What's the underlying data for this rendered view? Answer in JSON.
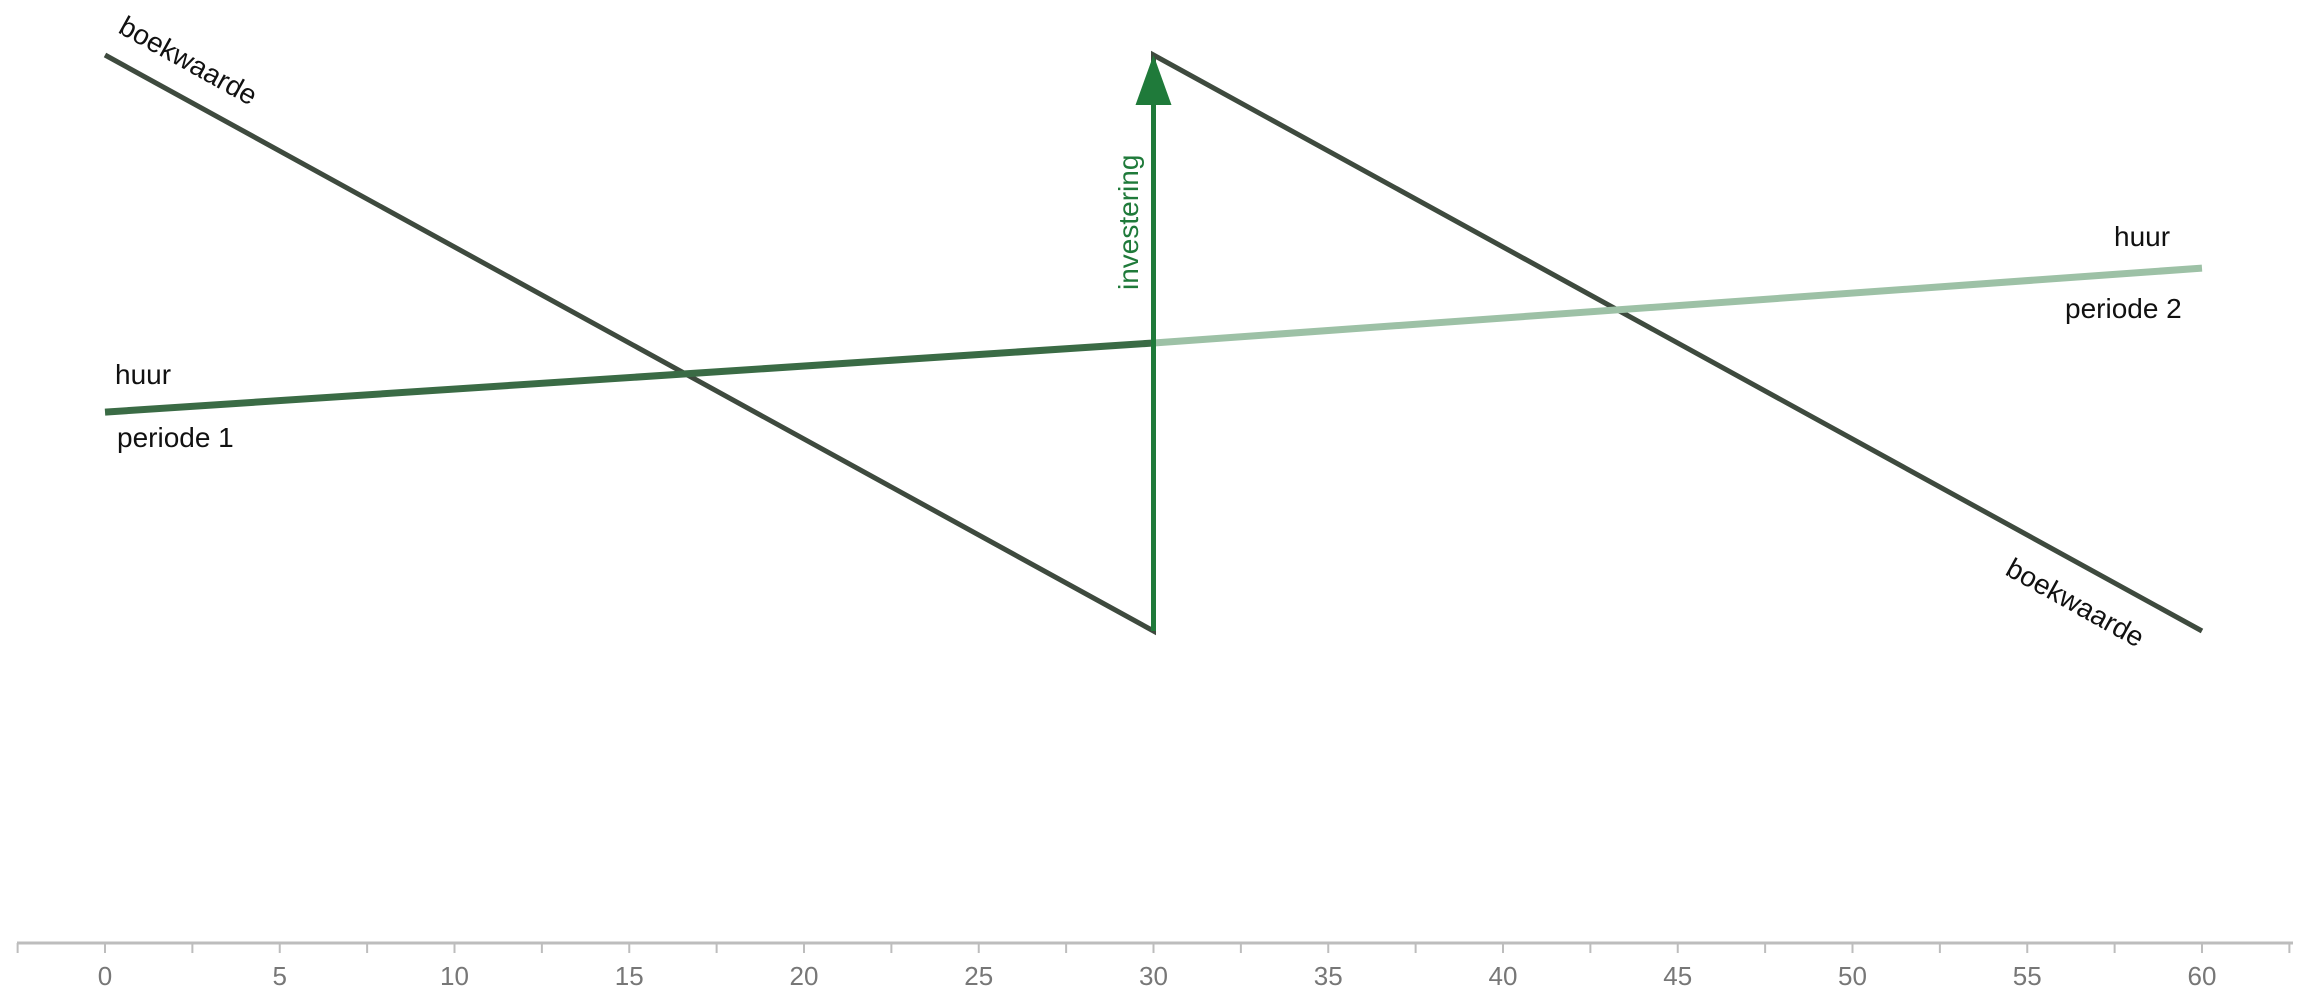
{
  "chart_data": {
    "type": "line",
    "x": [
      0,
      30,
      60
    ],
    "xlim": [
      -2.5,
      62.5
    ],
    "xticks": [
      "0",
      "5",
      "10",
      "15",
      "20",
      "25",
      "30",
      "35",
      "40",
      "45",
      "50",
      "55",
      "60"
    ],
    "ylim": [
      -70,
      105
    ],
    "grid": false,
    "series": [
      {
        "name": "boekwaarde",
        "role": "depreciation",
        "color": "#3e4a3e",
        "points": [
          [
            0,
            100
          ],
          [
            30,
            0
          ],
          [
            30,
            100
          ],
          [
            60,
            0
          ]
        ]
      },
      {
        "name": "huur",
        "role": "rent-period-1",
        "color": "#3a6b45",
        "points": [
          [
            0,
            38
          ],
          [
            30,
            50
          ]
        ]
      },
      {
        "name": "huur",
        "role": "rent-period-2",
        "color": "#9dc1a6",
        "points": [
          [
            30,
            50
          ],
          [
            60,
            63
          ]
        ]
      }
    ],
    "arrow": {
      "label": "investering",
      "x": 30,
      "from": 0,
      "to": 100,
      "color": "#1f7a3a"
    },
    "annotations": {
      "boekwaarde_start": "boekwaarde",
      "boekwaarde_end": "boekwaarde",
      "huur_1": "huur",
      "periode_1": "periode 1",
      "huur_2": "huur",
      "periode_2": "periode 2",
      "investering": "investering"
    }
  }
}
